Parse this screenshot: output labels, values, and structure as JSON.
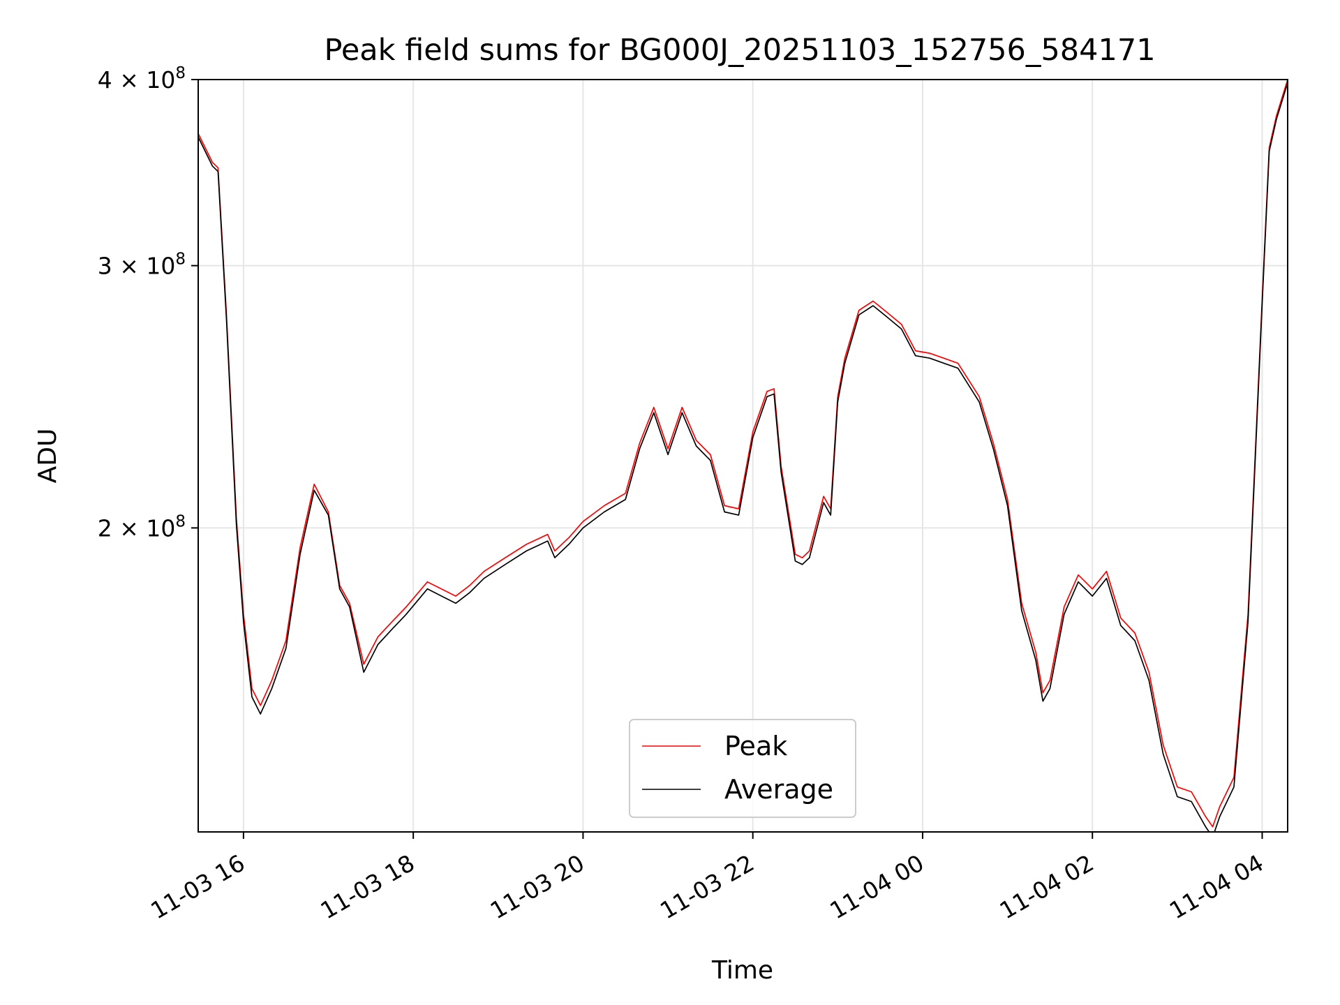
{
  "chart_data": {
    "type": "line",
    "title": "Peak field sums for BG000J_20251103_152756_584171",
    "xlabel": "Time",
    "ylabel": "ADU",
    "x_unit": "datetime",
    "xlim": [
      "2025-11-03 15:28",
      "2025-11-04 04:18"
    ],
    "ylim": [
      125000000,
      400000000
    ],
    "yscale": "log",
    "grid": true,
    "legend_position": "bottom-center",
    "x_ticks": [
      {
        "value": "2025-11-03 16:00",
        "label": "11-03 16"
      },
      {
        "value": "2025-11-03 18:00",
        "label": "11-03 18"
      },
      {
        "value": "2025-11-03 20:00",
        "label": "11-03 20"
      },
      {
        "value": "2025-11-03 22:00",
        "label": "11-03 22"
      },
      {
        "value": "2025-11-04 00:00",
        "label": "11-04 00"
      },
      {
        "value": "2025-11-04 02:00",
        "label": "11-04 02"
      },
      {
        "value": "2025-11-04 04:00",
        "label": "11-04 04"
      }
    ],
    "y_ticks": [
      {
        "value": 200000000,
        "base": "2",
        "exp": "8"
      },
      {
        "value": 300000000,
        "base": "3",
        "exp": "8"
      },
      {
        "value": 400000000,
        "base": "4",
        "exp": "8"
      }
    ],
    "series": [
      {
        "name": "Peak",
        "color": "#ff0000",
        "x": [
          "2025-11-03 15:28",
          "2025-11-03 15:38",
          "2025-11-03 15:42",
          "2025-11-03 15:48",
          "2025-11-03 15:55",
          "2025-11-03 16:00",
          "2025-11-03 16:06",
          "2025-11-03 16:12",
          "2025-11-03 16:20",
          "2025-11-03 16:30",
          "2025-11-03 16:40",
          "2025-11-03 16:50",
          "2025-11-03 17:00",
          "2025-11-03 17:08",
          "2025-11-03 17:15",
          "2025-11-03 17:25",
          "2025-11-03 17:35",
          "2025-11-03 17:45",
          "2025-11-03 17:55",
          "2025-11-03 18:10",
          "2025-11-03 18:30",
          "2025-11-03 18:40",
          "2025-11-03 18:50",
          "2025-11-03 19:05",
          "2025-11-03 19:20",
          "2025-11-03 19:35",
          "2025-11-03 19:40",
          "2025-11-03 19:50",
          "2025-11-03 20:00",
          "2025-11-03 20:15",
          "2025-11-03 20:30",
          "2025-11-03 20:40",
          "2025-11-03 20:50",
          "2025-11-03 21:00",
          "2025-11-03 21:10",
          "2025-11-03 21:20",
          "2025-11-03 21:30",
          "2025-11-03 21:40",
          "2025-11-03 21:50",
          "2025-11-03 22:00",
          "2025-11-03 22:10",
          "2025-11-03 22:15",
          "2025-11-03 22:20",
          "2025-11-03 22:30",
          "2025-11-03 22:35",
          "2025-11-03 22:40",
          "2025-11-03 22:50",
          "2025-11-03 22:55",
          "2025-11-03 23:00",
          "2025-11-03 23:05",
          "2025-11-03 23:15",
          "2025-11-03 23:25",
          "2025-11-03 23:35",
          "2025-11-03 23:45",
          "2025-11-03 23:55",
          "2025-11-04 00:05",
          "2025-11-04 00:15",
          "2025-11-04 00:25",
          "2025-11-04 00:40",
          "2025-11-04 00:50",
          "2025-11-04 01:00",
          "2025-11-04 01:10",
          "2025-11-04 01:20",
          "2025-11-04 01:25",
          "2025-11-04 01:30",
          "2025-11-04 01:40",
          "2025-11-04 01:50",
          "2025-11-04 02:00",
          "2025-11-04 02:10",
          "2025-11-04 02:20",
          "2025-11-04 02:30",
          "2025-11-04 02:40",
          "2025-11-04 02:50",
          "2025-11-04 03:00",
          "2025-11-04 03:10",
          "2025-11-04 03:20",
          "2025-11-04 03:25",
          "2025-11-04 03:30",
          "2025-11-04 03:40",
          "2025-11-04 03:50",
          "2025-11-04 04:00",
          "2025-11-04 04:05",
          "2025-11-04 04:10",
          "2025-11-04 04:18"
        ],
        "values": [
          368000000,
          352000000,
          349000000,
          278000000,
          203000000,
          175000000,
          156000000,
          152000000,
          158000000,
          168000000,
          194000000,
          214000000,
          205000000,
          183000000,
          178000000,
          162000000,
          169000000,
          173000000,
          177000000,
          184000000,
          180000000,
          183000000,
          187000000,
          191000000,
          195000000,
          198000000,
          193000000,
          197000000,
          202000000,
          207000000,
          211000000,
          228000000,
          241000000,
          226000000,
          241000000,
          229000000,
          224000000,
          207000000,
          206000000,
          232000000,
          247000000,
          248000000,
          220000000,
          192000000,
          191000000,
          193000000,
          210000000,
          206000000,
          245000000,
          260000000,
          280000000,
          284000000,
          279000000,
          274000000,
          263000000,
          262000000,
          260000000,
          258000000,
          245000000,
          228000000,
          209000000,
          178000000,
          165000000,
          155000000,
          158000000,
          177000000,
          186000000,
          182000000,
          187000000,
          174000000,
          170000000,
          160000000,
          143000000,
          134000000,
          133000000,
          128000000,
          126000000,
          130000000,
          136000000,
          175000000,
          285000000,
          360000000,
          378000000,
          400000000
        ]
      },
      {
        "name": "Average",
        "color": "#000000",
        "x": [
          "2025-11-03 15:28",
          "2025-11-03 15:38",
          "2025-11-03 15:42",
          "2025-11-03 15:48",
          "2025-11-03 15:55",
          "2025-11-03 16:00",
          "2025-11-03 16:06",
          "2025-11-03 16:12",
          "2025-11-03 16:20",
          "2025-11-03 16:30",
          "2025-11-03 16:40",
          "2025-11-03 16:50",
          "2025-11-03 17:00",
          "2025-11-03 17:08",
          "2025-11-03 17:15",
          "2025-11-03 17:25",
          "2025-11-03 17:35",
          "2025-11-03 17:45",
          "2025-11-03 17:55",
          "2025-11-03 18:10",
          "2025-11-03 18:30",
          "2025-11-03 18:40",
          "2025-11-03 18:50",
          "2025-11-03 19:05",
          "2025-11-03 19:20",
          "2025-11-03 19:35",
          "2025-11-03 19:40",
          "2025-11-03 19:50",
          "2025-11-03 20:00",
          "2025-11-03 20:15",
          "2025-11-03 20:30",
          "2025-11-03 20:40",
          "2025-11-03 20:50",
          "2025-11-03 21:00",
          "2025-11-03 21:10",
          "2025-11-03 21:20",
          "2025-11-03 21:30",
          "2025-11-03 21:40",
          "2025-11-03 21:50",
          "2025-11-03 22:00",
          "2025-11-03 22:10",
          "2025-11-03 22:15",
          "2025-11-03 22:20",
          "2025-11-03 22:30",
          "2025-11-03 22:35",
          "2025-11-03 22:40",
          "2025-11-03 22:50",
          "2025-11-03 22:55",
          "2025-11-03 23:00",
          "2025-11-03 23:05",
          "2025-11-03 23:15",
          "2025-11-03 23:25",
          "2025-11-03 23:35",
          "2025-11-03 23:45",
          "2025-11-03 23:55",
          "2025-11-04 00:05",
          "2025-11-04 00:15",
          "2025-11-04 00:25",
          "2025-11-04 00:40",
          "2025-11-04 00:50",
          "2025-11-04 01:00",
          "2025-11-04 01:10",
          "2025-11-04 01:20",
          "2025-11-04 01:25",
          "2025-11-04 01:30",
          "2025-11-04 01:40",
          "2025-11-04 01:50",
          "2025-11-04 02:00",
          "2025-11-04 02:10",
          "2025-11-04 02:20",
          "2025-11-04 02:30",
          "2025-11-04 02:40",
          "2025-11-04 02:50",
          "2025-11-04 03:00",
          "2025-11-04 03:10",
          "2025-11-04 03:20",
          "2025-11-04 03:25",
          "2025-11-04 03:30",
          "2025-11-04 03:40",
          "2025-11-04 03:50",
          "2025-11-04 04:00",
          "2025-11-04 04:05",
          "2025-11-04 04:10",
          "2025-11-04 04:18"
        ],
        "values": [
          366000000,
          350000000,
          347000000,
          276000000,
          201000000,
          173000000,
          154000000,
          150000000,
          156000000,
          166000000,
          192000000,
          212000000,
          204000000,
          182000000,
          177000000,
          160000000,
          167000000,
          171000000,
          175000000,
          182000000,
          178000000,
          181000000,
          185000000,
          189000000,
          193000000,
          196000000,
          191000000,
          195000000,
          200000000,
          205000000,
          209000000,
          226000000,
          239000000,
          224000000,
          239000000,
          227000000,
          222000000,
          205000000,
          204000000,
          230000000,
          245000000,
          246000000,
          218000000,
          190000000,
          189000000,
          191000000,
          208000000,
          204000000,
          243000000,
          258000000,
          278000000,
          282000000,
          277000000,
          272000000,
          261000000,
          260000000,
          258000000,
          256000000,
          243000000,
          226000000,
          207000000,
          176000000,
          163000000,
          153000000,
          156000000,
          175000000,
          184000000,
          180000000,
          185000000,
          172000000,
          168000000,
          158000000,
          141000000,
          132000000,
          131000000,
          126000000,
          124000000,
          128000000,
          134000000,
          173000000,
          283000000,
          358000000,
          376000000,
          398000000
        ]
      }
    ]
  }
}
